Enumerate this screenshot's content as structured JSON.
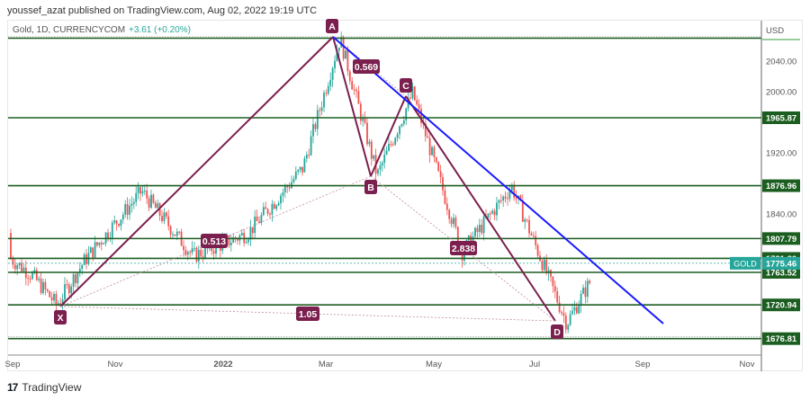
{
  "header": {
    "published_text": "youssef_azat published on TradingView.com, Aug 02, 2022 19:19 UTC"
  },
  "legend": {
    "symbol_text": "Gold, 1D, CURRENCYCOM",
    "change_text": "+3.61 (+0.20%)"
  },
  "footer": {
    "logo_glyph": "17",
    "brand": "TradingView"
  },
  "colors": {
    "up": "#26a69a",
    "down": "#ef5350",
    "level_line": "#1b5e20",
    "level_label_bg": "#1b5e20",
    "pattern": "#7b1f4e",
    "trendline": "#1a1aff",
    "current_price_bg": "#26a69a",
    "axis_text": "#555555"
  },
  "chart_data": {
    "type": "candlestick",
    "title": "Gold, 1D, CURRENCYCOM",
    "currency": "USD",
    "xlabel": "",
    "ylabel": "USD",
    "x_ticks": [
      "Sep",
      "Nov",
      "2022",
      "Mar",
      "May",
      "Jul",
      "Sep",
      "Nov"
    ],
    "y_ticks": [
      2040.0,
      2000.0,
      1920.0,
      1840.0
    ],
    "ylim": [
      1665,
      2075
    ],
    "grid": false,
    "horizontal_levels": [
      {
        "value": 2070.0,
        "label": null
      },
      {
        "value": 1965.87,
        "label": "1965.87"
      },
      {
        "value": 1876.96,
        "label": "1876.96"
      },
      {
        "value": 1807.79,
        "label": "1807.79"
      },
      {
        "value": 1781.8,
        "label": "1781.80"
      },
      {
        "value": 1763.52,
        "label": "1763.52"
      },
      {
        "value": 1720.94,
        "label": "1720.94"
      },
      {
        "value": 1676.81,
        "label": "1676.81"
      }
    ],
    "current_price": {
      "symbol": "GOLD",
      "value": 1775.46
    },
    "harmonic_pattern": {
      "points": [
        {
          "name": "X",
          "date": "2021-09-29",
          "price": 1721
        },
        {
          "name": "A",
          "date": "2022-03-08",
          "price": 2070
        },
        {
          "name": "B",
          "date": "2022-03-29",
          "price": 1890
        },
        {
          "name": "C",
          "date": "2022-04-18",
          "price": 1998
        },
        {
          "name": "D",
          "date": "2022-07-14",
          "price": 1697
        }
      ],
      "ratios": [
        {
          "label": "0.513",
          "between": "XA-AB"
        },
        {
          "label": "0.569",
          "between": "AB-BC"
        },
        {
          "label": "2.838",
          "between": "BC-CD"
        },
        {
          "label": "1.05",
          "between": "XA-XD"
        }
      ]
    },
    "trendline": {
      "from": {
        "date": "2022-03-08",
        "price": 2070
      },
      "to": {
        "date": "2022-09-05",
        "price": 1700
      }
    },
    "approx_price_path": [
      {
        "date": "2021-08",
        "price": 1815
      },
      {
        "date": "2021-09",
        "price": 1760
      },
      {
        "date": "2021-09-29",
        "price": 1721
      },
      {
        "date": "2021-10",
        "price": 1780
      },
      {
        "date": "2021-11-16",
        "price": 1870
      },
      {
        "date": "2021-12",
        "price": 1785
      },
      {
        "date": "2022-01",
        "price": 1815
      },
      {
        "date": "2022-02",
        "price": 1900
      },
      {
        "date": "2022-03-08",
        "price": 2070
      },
      {
        "date": "2022-03-29",
        "price": 1890
      },
      {
        "date": "2022-04-18",
        "price": 1998
      },
      {
        "date": "2022-05-16",
        "price": 1790
      },
      {
        "date": "2022-06-13",
        "price": 1876
      },
      {
        "date": "2022-07-14",
        "price": 1697
      },
      {
        "date": "2022-08-02",
        "price": 1775
      }
    ]
  }
}
